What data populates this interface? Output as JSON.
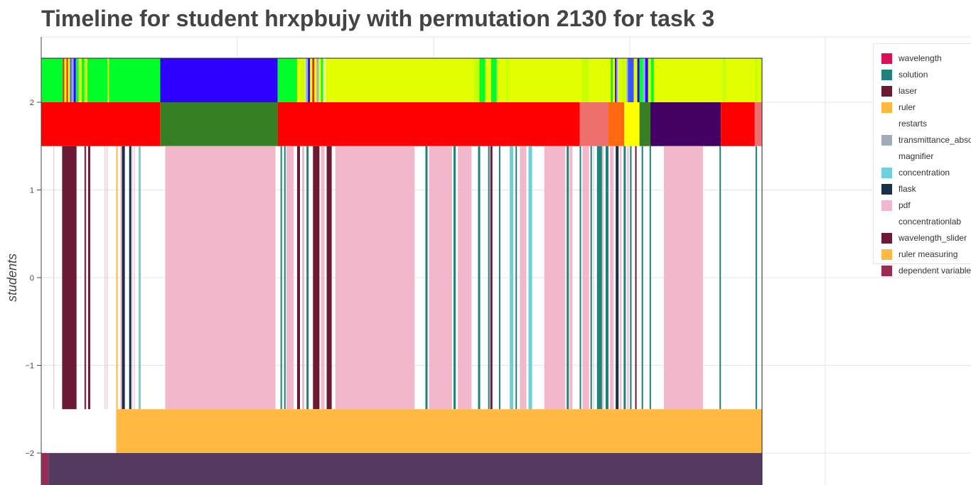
{
  "chart_data": {
    "type": "timeline",
    "title": "Timeline for student hrxpbujy with permutation 2130 for task 3",
    "xlabel": "",
    "ylabel": "students",
    "ylim": [
      -2.4,
      2.75
    ],
    "y_ticks": [
      {
        "value": 2,
        "label": "2"
      },
      {
        "value": 1,
        "label": "1"
      },
      {
        "value": 0,
        "label": "0"
      },
      {
        "value": -1,
        "label": "−1"
      },
      {
        "value": -2,
        "label": "−2"
      }
    ],
    "x_range": [
      0,
      1000
    ],
    "grid": true,
    "legend_position": "right",
    "legend": [
      {
        "name": "wavelength",
        "color": "#dc0f55"
      },
      {
        "name": "solution",
        "color": "#21827b"
      },
      {
        "name": "laser",
        "color": "#6b1a33"
      },
      {
        "name": "ruler",
        "color": "#ffb840"
      },
      {
        "name": "restarts",
        "color": "#ffffff"
      },
      {
        "name": "transmittance_absorbance",
        "color": "#a0acbd"
      },
      {
        "name": "magnifier",
        "color": "#ffffff"
      },
      {
        "name": "concentration",
        "color": "#6fd0dc"
      },
      {
        "name": "flask",
        "color": "#1a2f4a"
      },
      {
        "name": "pdf",
        "color": "#f0b8ca"
      },
      {
        "name": "concentrationlab",
        "color": "#ffffff"
      },
      {
        "name": "wavelength_slider",
        "color": "#6b1a33"
      },
      {
        "name": "ruler measuring",
        "color": "#ffb840"
      },
      {
        "name": "dependent variable",
        "color": "#9a2b54"
      }
    ],
    "rows": [
      {
        "y_top": 2.5,
        "y_bottom": 2.0,
        "segments": [
          {
            "start": 0,
            "end": 30,
            "color": "#00ff2a"
          },
          {
            "start": 30,
            "end": 32,
            "color": "#ff1a1a"
          },
          {
            "start": 32,
            "end": 35,
            "color": "#e2ff00"
          },
          {
            "start": 35,
            "end": 37,
            "color": "#ff1a1a"
          },
          {
            "start": 37,
            "end": 40,
            "color": "#e2ff00"
          },
          {
            "start": 40,
            "end": 42,
            "color": "#3b52ff"
          },
          {
            "start": 42,
            "end": 45,
            "color": "#96a8ff"
          },
          {
            "start": 45,
            "end": 48,
            "color": "#2d00ff"
          },
          {
            "start": 48,
            "end": 52,
            "color": "#00ff2a"
          },
          {
            "start": 52,
            "end": 56,
            "color": "#e2ff00"
          },
          {
            "start": 56,
            "end": 60,
            "color": "#00ff2a"
          },
          {
            "start": 60,
            "end": 64,
            "color": "#c8ff00"
          },
          {
            "start": 64,
            "end": 92,
            "color": "#00ff2a"
          },
          {
            "start": 92,
            "end": 94,
            "color": "#e2ff00"
          },
          {
            "start": 94,
            "end": 165,
            "color": "#00ff2a"
          },
          {
            "start": 165,
            "end": 328,
            "color": "#2d00ff"
          },
          {
            "start": 328,
            "end": 355,
            "color": "#00ff2a"
          },
          {
            "start": 355,
            "end": 360,
            "color": "#e2ff00"
          },
          {
            "start": 360,
            "end": 364,
            "color": "#c8ff00"
          },
          {
            "start": 364,
            "end": 367,
            "color": "#e2ff00"
          },
          {
            "start": 367,
            "end": 370,
            "color": "#96a8ff"
          },
          {
            "start": 370,
            "end": 373,
            "color": "#2d00ff"
          },
          {
            "start": 373,
            "end": 376,
            "color": "#e2ff00"
          },
          {
            "start": 376,
            "end": 379,
            "color": "#ff1a1a"
          },
          {
            "start": 379,
            "end": 382,
            "color": "#e2ff00"
          },
          {
            "start": 382,
            "end": 385,
            "color": "#96a8ff"
          },
          {
            "start": 385,
            "end": 388,
            "color": "#e2ff00"
          },
          {
            "start": 388,
            "end": 391,
            "color": "#00ff2a"
          },
          {
            "start": 391,
            "end": 395,
            "color": "#f7ff80"
          },
          {
            "start": 395,
            "end": 400,
            "color": "#e2ff00"
          },
          {
            "start": 400,
            "end": 600,
            "color": "#e2ff00"
          },
          {
            "start": 600,
            "end": 608,
            "color": "#c8ff00"
          },
          {
            "start": 608,
            "end": 616,
            "color": "#00ff2a"
          },
          {
            "start": 616,
            "end": 624,
            "color": "#e2ff00"
          },
          {
            "start": 624,
            "end": 632,
            "color": "#00ff2a"
          },
          {
            "start": 632,
            "end": 645,
            "color": "#e2ff00"
          },
          {
            "start": 645,
            "end": 648,
            "color": "#c8ff00"
          },
          {
            "start": 648,
            "end": 750,
            "color": "#e2ff00"
          },
          {
            "start": 750,
            "end": 760,
            "color": "#c8ff00"
          },
          {
            "start": 760,
            "end": 790,
            "color": "#e2ff00"
          },
          {
            "start": 790,
            "end": 793,
            "color": "#00ff2a"
          },
          {
            "start": 793,
            "end": 796,
            "color": "#e2ff00"
          },
          {
            "start": 796,
            "end": 798,
            "color": "#2d00ff"
          },
          {
            "start": 798,
            "end": 800,
            "color": "#96a8ff"
          },
          {
            "start": 800,
            "end": 805,
            "color": "#e2ff00"
          },
          {
            "start": 805,
            "end": 810,
            "color": "#c8ff00"
          },
          {
            "start": 810,
            "end": 812,
            "color": "#e2ff00"
          },
          {
            "start": 812,
            "end": 814,
            "color": "#96a8ff"
          },
          {
            "start": 814,
            "end": 822,
            "color": "#3b52ff"
          },
          {
            "start": 822,
            "end": 827,
            "color": "#e2ff00"
          },
          {
            "start": 827,
            "end": 830,
            "color": "#2d00ff"
          },
          {
            "start": 830,
            "end": 835,
            "color": "#00ff2a"
          },
          {
            "start": 835,
            "end": 838,
            "color": "#96a8ff"
          },
          {
            "start": 838,
            "end": 842,
            "color": "#2d00ff"
          },
          {
            "start": 842,
            "end": 846,
            "color": "#c8ff00"
          },
          {
            "start": 846,
            "end": 850,
            "color": "#00ff2a"
          },
          {
            "start": 850,
            "end": 945,
            "color": "#e2ff00"
          },
          {
            "start": 945,
            "end": 950,
            "color": "#c8ff00"
          },
          {
            "start": 950,
            "end": 990,
            "color": "#e2ff00"
          },
          {
            "start": 990,
            "end": 994,
            "color": "#c8ff00"
          },
          {
            "start": 994,
            "end": 997,
            "color": "#e2ff00"
          },
          {
            "start": 997,
            "end": 1000,
            "color": "#c8ff00"
          }
        ]
      },
      {
        "y_top": 2.0,
        "y_bottom": 1.5,
        "segments": [
          {
            "start": 0,
            "end": 165,
            "color": "#ff0000"
          },
          {
            "start": 165,
            "end": 328,
            "color": "#367f22"
          },
          {
            "start": 328,
            "end": 747,
            "color": "#ff0000"
          },
          {
            "start": 747,
            "end": 787,
            "color": "#ef6e6e"
          },
          {
            "start": 787,
            "end": 809,
            "color": "#ff6a10"
          },
          {
            "start": 809,
            "end": 830,
            "color": "#ffff00"
          },
          {
            "start": 830,
            "end": 845,
            "color": "#367f22"
          },
          {
            "start": 845,
            "end": 943,
            "color": "#450064"
          },
          {
            "start": 943,
            "end": 990,
            "color": "#ff0000"
          },
          {
            "start": 990,
            "end": 1000,
            "color": "#ef6e6e"
          }
        ]
      },
      {
        "y_top": 1.5,
        "y_bottom": -1.5,
        "segments": [
          {
            "start": 17,
            "end": 18,
            "color": "#f0b8ca"
          },
          {
            "start": 29,
            "end": 49,
            "color": "#6b1a33"
          },
          {
            "start": 60,
            "end": 62,
            "color": "#6b1a33"
          },
          {
            "start": 62,
            "end": 63,
            "color": "#f0b8ca"
          },
          {
            "start": 65,
            "end": 68,
            "color": "#6b1a33"
          },
          {
            "start": 88,
            "end": 89,
            "color": "#f0b8ca"
          },
          {
            "start": 91,
            "end": 92,
            "color": "#f0b8ca"
          },
          {
            "start": 104,
            "end": 106,
            "color": "#ffb840"
          },
          {
            "start": 110,
            "end": 112,
            "color": "#f0b8ca"
          },
          {
            "start": 112,
            "end": 116,
            "color": "#1a2f4a"
          },
          {
            "start": 122,
            "end": 125,
            "color": "#1a2f4a"
          },
          {
            "start": 126,
            "end": 127,
            "color": "#f0b8ca"
          },
          {
            "start": 129,
            "end": 130,
            "color": "#f0b8ca"
          },
          {
            "start": 135,
            "end": 138,
            "color": "#6fd0dc"
          },
          {
            "start": 172,
            "end": 325,
            "color": "#f0b8ca"
          },
          {
            "start": 332,
            "end": 334,
            "color": "#21827b"
          },
          {
            "start": 337,
            "end": 339,
            "color": "#21827b"
          },
          {
            "start": 340,
            "end": 350,
            "color": "#f0b8ca"
          },
          {
            "start": 355,
            "end": 359,
            "color": "#6b1a33"
          },
          {
            "start": 362,
            "end": 365,
            "color": "#f0b8ca"
          },
          {
            "start": 368,
            "end": 371,
            "color": "#21827b"
          },
          {
            "start": 377,
            "end": 386,
            "color": "#6b1a33"
          },
          {
            "start": 388,
            "end": 393,
            "color": "#f0b8ca"
          },
          {
            "start": 396,
            "end": 403,
            "color": "#6b1a33"
          },
          {
            "start": 408,
            "end": 518,
            "color": "#f0b8ca"
          },
          {
            "start": 533,
            "end": 536,
            "color": "#21827b"
          },
          {
            "start": 538,
            "end": 570,
            "color": "#f0b8ca"
          },
          {
            "start": 572,
            "end": 575,
            "color": "#21827b"
          },
          {
            "start": 578,
            "end": 597,
            "color": "#f0b8ca"
          },
          {
            "start": 606,
            "end": 609,
            "color": "#21827b"
          },
          {
            "start": 620,
            "end": 622,
            "color": "#21827b"
          },
          {
            "start": 623,
            "end": 626,
            "color": "#6b1a33"
          },
          {
            "start": 635,
            "end": 637,
            "color": "#21827b"
          },
          {
            "start": 650,
            "end": 655,
            "color": "#6fd0dc"
          },
          {
            "start": 658,
            "end": 660,
            "color": "#21827b"
          },
          {
            "start": 664,
            "end": 673,
            "color": "#f0b8ca"
          },
          {
            "start": 676,
            "end": 681,
            "color": "#6fd0dc"
          },
          {
            "start": 698,
            "end": 727,
            "color": "#f0b8ca"
          },
          {
            "start": 729,
            "end": 732,
            "color": "#21827b"
          },
          {
            "start": 733,
            "end": 737,
            "color": "#f0b8ca"
          },
          {
            "start": 747,
            "end": 749,
            "color": "#21827b"
          },
          {
            "start": 751,
            "end": 760,
            "color": "#f0b8ca"
          },
          {
            "start": 762,
            "end": 764,
            "color": "#21827b"
          },
          {
            "start": 766,
            "end": 767,
            "color": "#f0b8ca"
          },
          {
            "start": 771,
            "end": 778,
            "color": "#21827b"
          },
          {
            "start": 778,
            "end": 780,
            "color": "#f0b8ca"
          },
          {
            "start": 783,
            "end": 787,
            "color": "#21827b"
          },
          {
            "start": 789,
            "end": 794,
            "color": "#f0b8ca"
          },
          {
            "start": 797,
            "end": 801,
            "color": "#1a2f4a"
          },
          {
            "start": 803,
            "end": 805,
            "color": "#f0b8ca"
          },
          {
            "start": 808,
            "end": 811,
            "color": "#21827b"
          },
          {
            "start": 813,
            "end": 815,
            "color": "#f0b8ca"
          },
          {
            "start": 817,
            "end": 819,
            "color": "#21827b"
          },
          {
            "start": 824,
            "end": 826,
            "color": "#6b1a33"
          },
          {
            "start": 833,
            "end": 835,
            "color": "#21827b"
          },
          {
            "start": 844,
            "end": 846,
            "color": "#21827b"
          },
          {
            "start": 864,
            "end": 918,
            "color": "#f0b8ca"
          },
          {
            "start": 941,
            "end": 943,
            "color": "#21827b"
          },
          {
            "start": 991,
            "end": 993,
            "color": "#21827b"
          }
        ]
      },
      {
        "y_top": -1.5,
        "y_bottom": -2.0,
        "segments": [
          {
            "start": 104,
            "end": 1000,
            "color": "#ffb840"
          }
        ]
      },
      {
        "y_top": -2.0,
        "y_bottom": -2.4,
        "segments": [
          {
            "start": 0,
            "end": 10,
            "color": "#9a2b54"
          },
          {
            "start": 10,
            "end": 1000,
            "color": "#523a61"
          }
        ]
      }
    ]
  }
}
